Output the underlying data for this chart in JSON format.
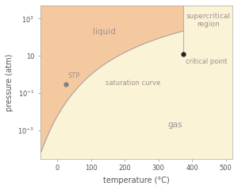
{
  "title": "",
  "xlabel": "temperature (°C)",
  "ylabel": "pressure (atm)",
  "xlim": [
    -50,
    520
  ],
  "ylim_bottom": 3e-05,
  "ylim_top": 5000,
  "y_ticks": [
    0.001,
    0.1,
    10,
    1000
  ],
  "y_tick_labels": [
    "$10^{-3}$",
    "$10^{-1}$",
    "10",
    "$10^3$"
  ],
  "x_ticks": [
    0,
    100,
    200,
    300,
    400,
    500
  ],
  "x_tick_labels": [
    "0",
    "100",
    "200",
    "300",
    "400",
    "500"
  ],
  "critical_T": 374,
  "critical_P": 12,
  "stp_T": 25,
  "stp_P": 0.3,
  "color_liquid": "#f5c9a0",
  "color_gas": "#faf3d6",
  "color_supercritical": "#faf3d6",
  "curve_color": "#a8a0a0",
  "text_color": "#a09090",
  "label_fontsize": 6.5,
  "axis_label_fontsize": 7,
  "tick_fontsize": 6
}
